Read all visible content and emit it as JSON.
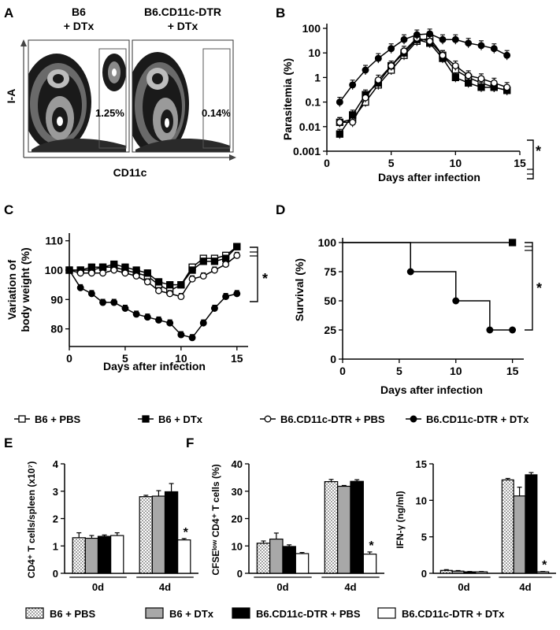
{
  "panel_labels": {
    "A": "A",
    "B": "B",
    "C": "C",
    "D": "D",
    "E": "E",
    "F": "F"
  },
  "flow": {
    "groups": [
      {
        "line1": "B6",
        "line2": "+ DTx",
        "gate_pct": "1.25%"
      },
      {
        "line1": "B6.CD11c-DTR",
        "line2": "+ DTx",
        "gate_pct": "0.14%"
      }
    ],
    "xlabel": "CD11c",
    "ylabel": "I-A"
  },
  "legend_lines": [
    {
      "label": "B6 + PBS",
      "marker": "open-square"
    },
    {
      "label": "B6 + DTx",
      "marker": "filled-square"
    },
    {
      "label": "B6.CD11c-DTR + PBS",
      "marker": "open-circle"
    },
    {
      "label": "B6.CD11c-DTR + DTx",
      "marker": "filled-circle"
    }
  ],
  "legend_bars": [
    {
      "label": "B6 + PBS",
      "fill": "dots"
    },
    {
      "label": "B6 + DTx",
      "fill": "#a8a8a8"
    },
    {
      "label": "B6.CD11c-DTR + PBS",
      "fill": "#000000"
    },
    {
      "label": "B6.CD11c-DTR + DTx",
      "fill": "#ffffff"
    }
  ],
  "significance": "*",
  "chart_data": [
    {
      "panel": "B",
      "type": "line",
      "scale": "log",
      "xlabel": "Days after infection",
      "ylabel": "Parasitemia (%)",
      "xlim": [
        0,
        15
      ],
      "ylim": [
        0.001,
        100
      ],
      "xticks": [
        0,
        5,
        10,
        15
      ],
      "yticks": [
        0.001,
        0.01,
        0.1,
        1,
        10,
        100
      ],
      "ytick_labels": [
        "0.001",
        "0.01",
        "0.1",
        "1",
        "10",
        "100"
      ],
      "series": [
        {
          "marker": "open-square",
          "x": [
            1,
            2,
            3,
            4,
            5,
            6,
            7,
            8,
            9,
            10,
            11,
            12,
            13,
            14
          ],
          "y": [
            0.015,
            0.02,
            0.1,
            0.5,
            2,
            8,
            30,
            40,
            8,
            2,
            1,
            0.6,
            0.4,
            0.3
          ]
        },
        {
          "marker": "filled-square",
          "x": [
            1,
            2,
            3,
            4,
            5,
            6,
            7,
            8,
            9,
            10,
            11,
            12,
            13,
            14
          ],
          "y": [
            0.005,
            0.03,
            0.2,
            0.6,
            3,
            10,
            35,
            25,
            6,
            1,
            0.6,
            0.4,
            0.4,
            0.3
          ]
        },
        {
          "marker": "open-circle",
          "x": [
            1,
            2,
            3,
            4,
            5,
            6,
            7,
            8,
            9,
            10,
            11,
            12,
            13,
            14
          ],
          "y": [
            0.015,
            0.015,
            0.15,
            0.8,
            3,
            12,
            40,
            30,
            8,
            3,
            1.2,
            0.9,
            0.6,
            0.4
          ]
        },
        {
          "marker": "filled-circle",
          "x": [
            1,
            2,
            3,
            4,
            5,
            6,
            7,
            8,
            9,
            10,
            11,
            12,
            13,
            14
          ],
          "y": [
            0.1,
            0.5,
            2,
            6,
            15,
            35,
            55,
            60,
            35,
            35,
            25,
            20,
            15,
            8
          ]
        }
      ]
    },
    {
      "panel": "C",
      "type": "line",
      "xlabel": "Days after infection",
      "ylabel_line1": "Variation of",
      "ylabel_line2": "body weight (%)",
      "xlim": [
        0,
        16
      ],
      "ylim": [
        74,
        111
      ],
      "xticks": [
        0,
        5,
        10,
        15
      ],
      "yticks": [
        80,
        90,
        100,
        110
      ],
      "series": [
        {
          "marker": "open-square",
          "x": [
            0,
            1,
            2,
            3,
            4,
            5,
            6,
            7,
            8,
            9,
            10,
            11,
            12,
            13,
            14,
            15
          ],
          "y": [
            100,
            100,
            100,
            101,
            101,
            100,
            99,
            98,
            95,
            93,
            95,
            101,
            104,
            104,
            105,
            108
          ]
        },
        {
          "marker": "filled-square",
          "x": [
            0,
            1,
            2,
            3,
            4,
            5,
            6,
            7,
            8,
            9,
            10,
            11,
            12,
            13,
            14,
            15
          ],
          "y": [
            100,
            100,
            101,
            101,
            102,
            101,
            100,
            99,
            96,
            95,
            95,
            100,
            103,
            103,
            104,
            108
          ]
        },
        {
          "marker": "open-circle",
          "x": [
            0,
            1,
            2,
            3,
            4,
            5,
            6,
            7,
            8,
            9,
            10,
            11,
            12,
            13,
            14,
            15
          ],
          "y": [
            100,
            99,
            99,
            99,
            100,
            99,
            98,
            96,
            93,
            92,
            91,
            97,
            98,
            100,
            102,
            105
          ]
        },
        {
          "marker": "filled-circle",
          "x": [
            0,
            1,
            2,
            3,
            4,
            5,
            6,
            7,
            8,
            9,
            10,
            11,
            12,
            13,
            14,
            15
          ],
          "y": [
            100,
            94,
            92,
            89,
            89,
            87,
            85,
            84,
            83,
            82,
            78,
            77,
            82,
            87,
            91,
            92
          ]
        }
      ]
    },
    {
      "panel": "D",
      "type": "line",
      "step": true,
      "xlabel": "Days after infection",
      "ylabel": "Survival (%)",
      "xlim": [
        0,
        16
      ],
      "ylim": [
        0,
        100
      ],
      "xticks": [
        0,
        5,
        10,
        15
      ],
      "yticks": [
        0,
        25,
        50,
        75,
        100
      ],
      "series": [
        {
          "marker": "filled-square",
          "x": [
            0,
            15
          ],
          "y": [
            100,
            100
          ]
        },
        {
          "marker": "filled-circle",
          "x": [
            0,
            6,
            10,
            13,
            15
          ],
          "y": [
            100,
            75,
            50,
            25,
            25
          ]
        }
      ]
    },
    {
      "panel": "E",
      "type": "bar",
      "ylabel": "CD4⁺ T cells/spleen (x10⁷)",
      "categories": [
        "0d",
        "4d"
      ],
      "ylim": [
        0,
        4
      ],
      "yticks": [
        0,
        1,
        2,
        3,
        4
      ],
      "values": [
        [
          1.3,
          1.28,
          1.35,
          1.38
        ],
        [
          2.8,
          2.82,
          2.98,
          1.22
        ]
      ],
      "errors": [
        [
          0.18,
          0.1,
          0.05,
          0.1
        ],
        [
          0.05,
          0.2,
          0.3,
          0.05
        ]
      ],
      "star_on": [
        1,
        3
      ]
    },
    {
      "panel": "F1",
      "type": "bar",
      "ylabel": "CFSEˡᵒʷ CD4⁺ T cells (%)",
      "categories": [
        "0d",
        "4d"
      ],
      "ylim": [
        0,
        40
      ],
      "yticks": [
        0,
        10,
        20,
        30,
        40
      ],
      "values": [
        [
          11,
          12.5,
          9.8,
          7.2
        ],
        [
          33.5,
          31.8,
          33.6,
          7
        ]
      ],
      "errors": [
        [
          0.8,
          2.2,
          0.6,
          0.4
        ],
        [
          0.8,
          0.3,
          0.6,
          0.8
        ]
      ],
      "star_on": [
        1,
        3
      ]
    },
    {
      "panel": "F2",
      "type": "bar",
      "ylabel": "IFN-γ (ng/ml)",
      "categories": [
        "0d",
        "4d"
      ],
      "ylim": [
        0,
        15
      ],
      "yticks": [
        0,
        5,
        10,
        15
      ],
      "values": [
        [
          0.4,
          0.3,
          0.2,
          0.2
        ],
        [
          12.8,
          10.6,
          13.5,
          0.2
        ]
      ],
      "errors": [
        [
          0.1,
          0.08,
          0.05,
          0.05
        ],
        [
          0.2,
          1.2,
          0.3,
          0.05
        ]
      ],
      "star_on": [
        1,
        3
      ]
    }
  ]
}
